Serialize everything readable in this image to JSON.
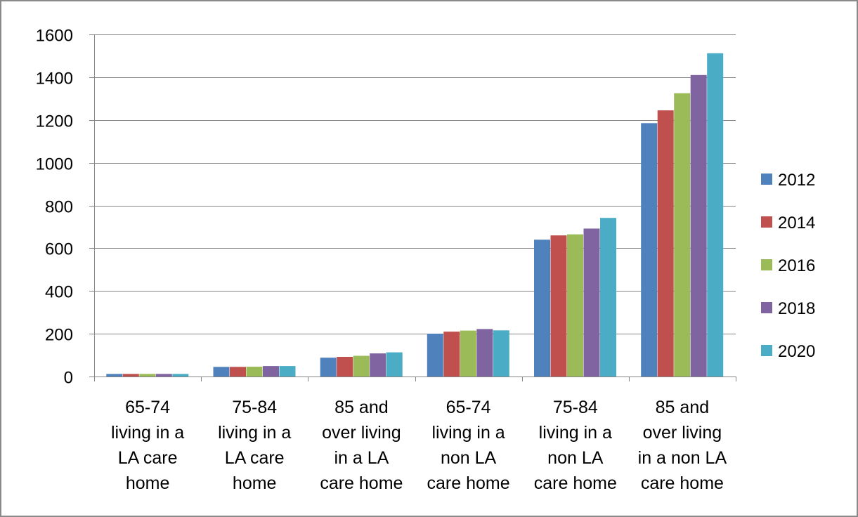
{
  "chart_data": {
    "type": "bar",
    "title": "",
    "xlabel": "",
    "ylabel": "",
    "ylim": [
      0,
      1600
    ],
    "yticks": [
      0,
      200,
      400,
      600,
      800,
      1000,
      1200,
      1400,
      1600
    ],
    "grid": true,
    "legend_position": "right",
    "categories": [
      [
        "65-74",
        "living in a",
        "LA care",
        "home"
      ],
      [
        "75-84",
        "living in a",
        "LA care",
        "home"
      ],
      [
        "85 and",
        "over living",
        "in a LA",
        "care home"
      ],
      [
        "65-74",
        "living in a",
        "non LA",
        "care home"
      ],
      [
        "75-84",
        "living in a",
        "non LA",
        "care home"
      ],
      [
        "85 and",
        "over living",
        "in a non LA",
        "care home"
      ]
    ],
    "series": [
      {
        "name": "2012",
        "color": "#4f81bd",
        "values": [
          12,
          45,
          88,
          200,
          640,
          1185
        ]
      },
      {
        "name": "2014",
        "color": "#c0504d",
        "values": [
          12,
          45,
          92,
          210,
          660,
          1245
        ]
      },
      {
        "name": "2016",
        "color": "#9bbb59",
        "values": [
          12,
          46,
          97,
          215,
          665,
          1325
        ]
      },
      {
        "name": "2018",
        "color": "#8064a2",
        "values": [
          12,
          49,
          108,
          222,
          692,
          1410
        ]
      },
      {
        "name": "2020",
        "color": "#4bacc6",
        "values": [
          12,
          49,
          113,
          216,
          742,
          1512
        ]
      }
    ]
  }
}
